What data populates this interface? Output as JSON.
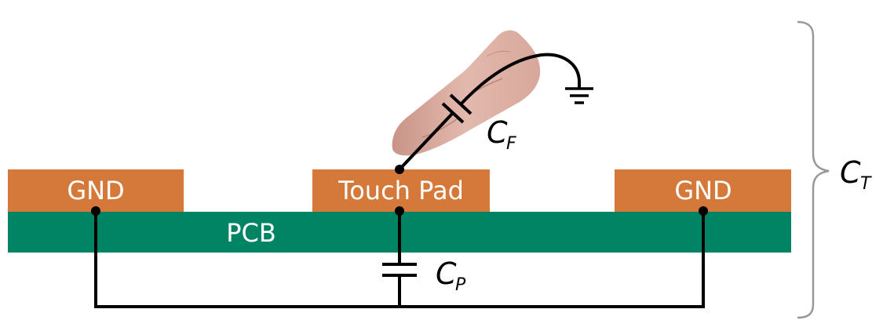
{
  "labels": {
    "gnd_left": "GND",
    "touch_pad": "Touch Pad",
    "gnd_right": "GND",
    "pcb": "PCB"
  },
  "capacitors": {
    "finger": {
      "main": "C",
      "sub": "F"
    },
    "parasitic": {
      "main": "C",
      "sub": "P"
    },
    "total": {
      "main": "C",
      "sub": "T"
    }
  },
  "colors": {
    "pad": "#D5793A",
    "pcb": "#008463",
    "wire": "#000000",
    "brace": "#999999",
    "finger": "#D9A99C"
  },
  "icons": {
    "ground": "ground-symbol-icon",
    "finger": "finger-icon",
    "brace": "curly-brace-icon"
  }
}
